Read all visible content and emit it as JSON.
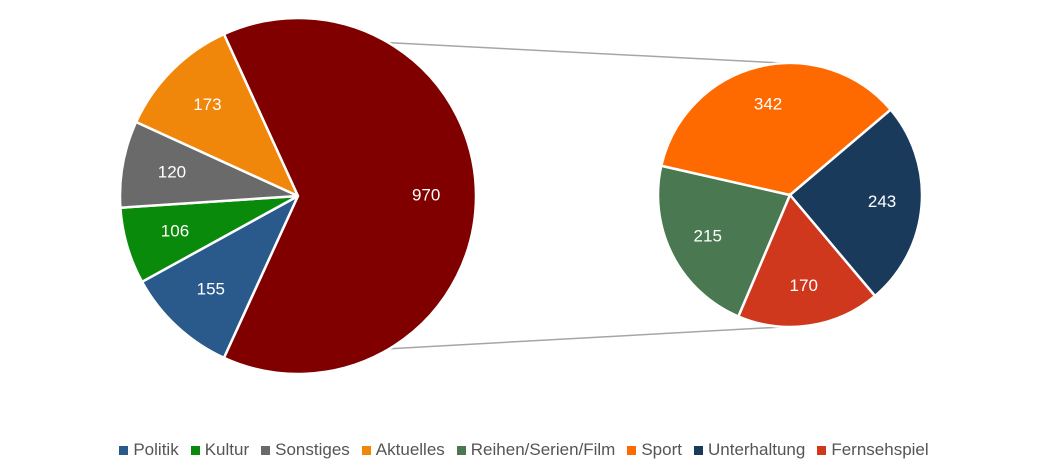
{
  "chart_data": [
    {
      "type": "pie",
      "categories": [
        "Politik",
        "Kultur",
        "Sonstiges",
        "Aktuelles",
        null
      ],
      "values": [
        155,
        106,
        120,
        173,
        970
      ],
      "colors": [
        "#2a5a8c",
        "#0a8a0a",
        "#6a6a6a",
        "#f0870a",
        "#800000"
      ]
    },
    {
      "type": "pie",
      "categories": [
        "Reihen/Serien/Film",
        "Sport",
        "Unterhaltung",
        "Fernsehspiel"
      ],
      "values": [
        215,
        342,
        243,
        170
      ],
      "colors": [
        "#4a7850",
        "#ff6a00",
        "#1a3a5c",
        "#d0381e"
      ]
    }
  ]
}
